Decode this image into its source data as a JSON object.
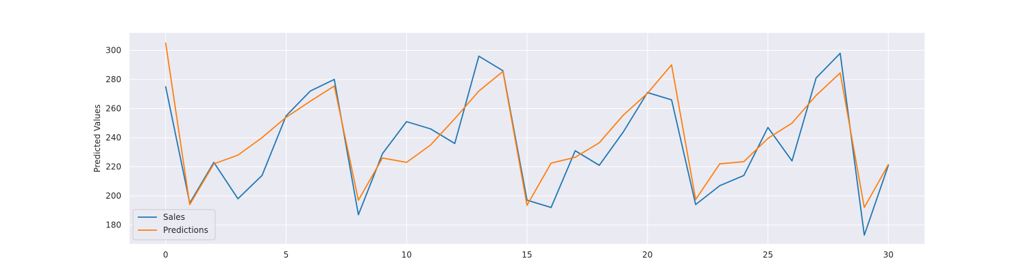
{
  "chart_data": {
    "type": "line",
    "title": "",
    "xlabel": "",
    "ylabel": "Predicted Values",
    "xlim": [
      -1.5,
      31.5
    ],
    "ylim": [
      167,
      312
    ],
    "x_ticks": [
      0,
      5,
      10,
      15,
      20,
      25,
      30
    ],
    "y_ticks": [
      180,
      200,
      220,
      240,
      260,
      280,
      300
    ],
    "grid": true,
    "legend_position": "lower-left",
    "x": [
      0,
      1,
      2,
      3,
      4,
      5,
      6,
      7,
      8,
      9,
      10,
      11,
      12,
      13,
      14,
      15,
      16,
      17,
      18,
      19,
      20,
      21,
      22,
      23,
      24,
      25,
      26,
      27,
      28,
      29,
      30
    ],
    "series": [
      {
        "name": "Sales",
        "color": "#1f77b4",
        "values": [
          275,
          195,
          223,
          198,
          214,
          255,
          272,
          280,
          187,
          229,
          251,
          246,
          236,
          296,
          286,
          197,
          192,
          231,
          221,
          244,
          271,
          266,
          194,
          207,
          214,
          247,
          224,
          281,
          298,
          173,
          221
        ]
      },
      {
        "name": "Predictions",
        "color": "#ff7f0e",
        "values": [
          305,
          194,
          222,
          228,
          240,
          254,
          265,
          275.5,
          197,
          226,
          223,
          235,
          253,
          272,
          285.5,
          193.5,
          222.5,
          226.5,
          236.5,
          255.5,
          270.5,
          290,
          197.5,
          222,
          223.5,
          239.5,
          250,
          269,
          284.5,
          192,
          221.5
        ]
      }
    ]
  },
  "style": {
    "plot_background": "#eaeaf2",
    "grid_color": "#ffffff"
  }
}
